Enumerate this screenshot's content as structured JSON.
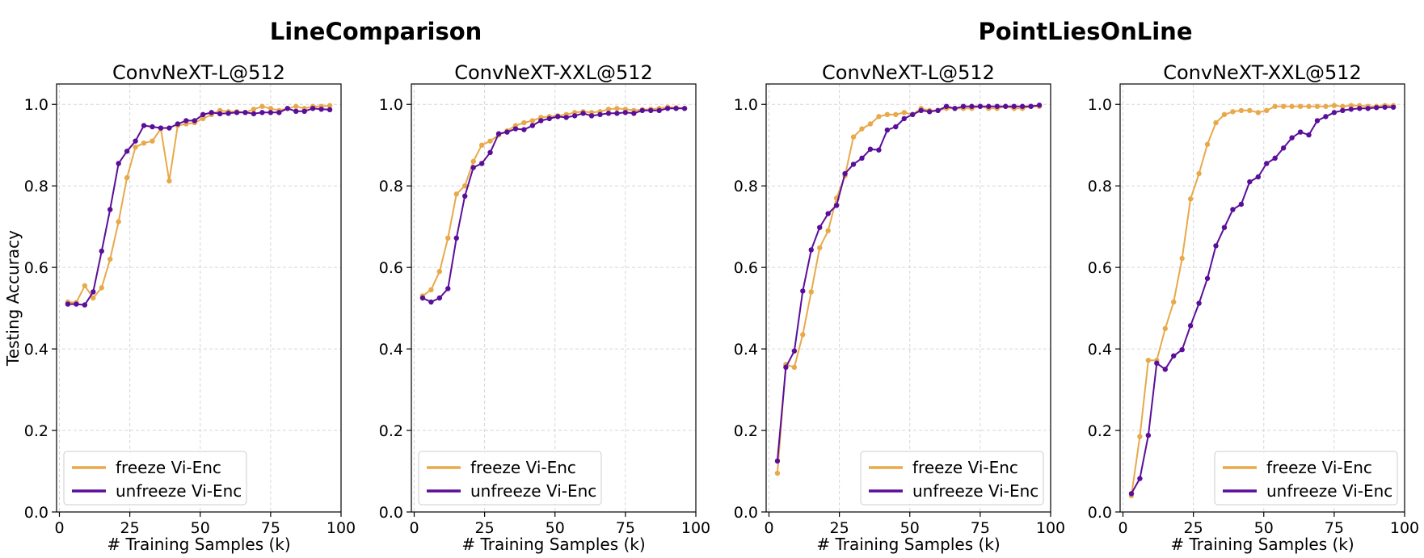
{
  "group_titles": [
    "LineComparison",
    "PointLiesOnLine"
  ],
  "colors": {
    "freeze": "#E8A94A",
    "unfreeze": "#5A0E99",
    "grid": "#d6d6d6"
  },
  "chart_data": [
    {
      "type": "line",
      "group": "LineComparison",
      "title": "ConvNeXT-L@512",
      "xlabel": "# Training Samples (k)",
      "ylabel": "Testing Accuracy",
      "xlim": [
        -1,
        100
      ],
      "ylim": [
        0,
        1.05
      ],
      "xticks": [
        0,
        25,
        50,
        75,
        100
      ],
      "yticks": [
        0.0,
        0.2,
        0.4,
        0.6,
        0.8,
        1.0
      ],
      "grid": true,
      "legend": "lower left",
      "series": [
        {
          "name": "freeze Vi-Enc",
          "x": [
            3,
            6,
            9,
            12,
            15,
            18,
            21,
            24,
            27,
            30,
            33,
            36,
            39,
            42,
            45,
            48,
            51,
            54,
            57,
            60,
            63,
            66,
            69,
            72,
            75,
            78,
            81,
            84,
            87,
            90,
            93,
            96
          ],
          "y": [
            0.515,
            0.514,
            0.555,
            0.525,
            0.55,
            0.62,
            0.712,
            0.82,
            0.895,
            0.905,
            0.91,
            0.94,
            0.812,
            0.948,
            0.952,
            0.955,
            0.965,
            0.975,
            0.985,
            0.982,
            0.982,
            0.98,
            0.988,
            0.995,
            0.99,
            0.985,
            0.99,
            0.995,
            0.99,
            0.995,
            0.995,
            0.997
          ]
        },
        {
          "name": "unfreeze Vi-Enc",
          "x": [
            3,
            6,
            9,
            12,
            15,
            18,
            21,
            24,
            27,
            30,
            33,
            36,
            39,
            42,
            45,
            48,
            51,
            54,
            57,
            60,
            63,
            66,
            69,
            72,
            75,
            78,
            81,
            84,
            87,
            90,
            93,
            96
          ],
          "y": [
            0.51,
            0.51,
            0.508,
            0.54,
            0.64,
            0.742,
            0.855,
            0.885,
            0.91,
            0.948,
            0.945,
            0.942,
            0.942,
            0.952,
            0.96,
            0.96,
            0.975,
            0.98,
            0.977,
            0.978,
            0.98,
            0.98,
            0.977,
            0.98,
            0.98,
            0.98,
            0.99,
            0.983,
            0.983,
            0.99,
            0.988,
            0.987
          ]
        }
      ]
    },
    {
      "type": "line",
      "group": "LineComparison",
      "title": "ConvNeXT-XXL@512",
      "xlabel": "# Training Samples (k)",
      "ylabel": "",
      "xlim": [
        -1,
        100
      ],
      "ylim": [
        0,
        1.05
      ],
      "xticks": [
        0,
        25,
        50,
        75,
        100
      ],
      "yticks": [
        0.0,
        0.2,
        0.4,
        0.6,
        0.8,
        1.0
      ],
      "grid": true,
      "legend": "lower left",
      "series": [
        {
          "name": "freeze Vi-Enc",
          "x": [
            3,
            6,
            9,
            12,
            15,
            18,
            21,
            24,
            27,
            30,
            33,
            36,
            39,
            42,
            45,
            48,
            51,
            54,
            57,
            60,
            63,
            66,
            69,
            72,
            75,
            78,
            81,
            84,
            87,
            90,
            93,
            96
          ],
          "y": [
            0.53,
            0.545,
            0.59,
            0.672,
            0.78,
            0.8,
            0.86,
            0.9,
            0.91,
            0.925,
            0.935,
            0.948,
            0.955,
            0.96,
            0.968,
            0.97,
            0.972,
            0.975,
            0.98,
            0.982,
            0.98,
            0.982,
            0.988,
            0.99,
            0.988,
            0.985,
            0.987,
            0.988,
            0.99,
            0.993,
            0.992,
            0.99
          ]
        },
        {
          "name": "unfreeze Vi-Enc",
          "x": [
            3,
            6,
            9,
            12,
            15,
            18,
            21,
            24,
            27,
            30,
            33,
            36,
            39,
            42,
            45,
            48,
            51,
            54,
            57,
            60,
            63,
            66,
            69,
            72,
            75,
            78,
            81,
            84,
            87,
            90,
            93,
            96
          ],
          "y": [
            0.525,
            0.515,
            0.525,
            0.548,
            0.672,
            0.775,
            0.845,
            0.855,
            0.882,
            0.928,
            0.932,
            0.94,
            0.938,
            0.948,
            0.96,
            0.965,
            0.97,
            0.968,
            0.972,
            0.978,
            0.972,
            0.975,
            0.978,
            0.978,
            0.98,
            0.978,
            0.985,
            0.985,
            0.985,
            0.99,
            0.99,
            0.99
          ]
        }
      ]
    },
    {
      "type": "line",
      "group": "PointLiesOnLine",
      "title": "ConvNeXT-L@512",
      "xlabel": "# Training Samples (k)",
      "ylabel": "",
      "xlim": [
        -1,
        100
      ],
      "ylim": [
        0,
        1.05
      ],
      "xticks": [
        0,
        25,
        50,
        75,
        100
      ],
      "yticks": [
        0.0,
        0.2,
        0.4,
        0.6,
        0.8,
        1.0
      ],
      "grid": true,
      "legend": "lower right",
      "series": [
        {
          "name": "freeze Vi-Enc",
          "x": [
            3,
            6,
            9,
            12,
            15,
            18,
            21,
            24,
            27,
            30,
            33,
            36,
            39,
            42,
            45,
            48,
            51,
            54,
            57,
            60,
            63,
            66,
            69,
            72,
            75,
            78,
            81,
            84,
            87,
            90,
            93,
            96
          ],
          "y": [
            0.095,
            0.362,
            0.355,
            0.435,
            0.54,
            0.648,
            0.69,
            0.77,
            0.825,
            0.92,
            0.94,
            0.952,
            0.97,
            0.975,
            0.975,
            0.98,
            0.975,
            0.99,
            0.985,
            0.985,
            0.99,
            0.99,
            0.99,
            0.99,
            0.995,
            0.99,
            0.99,
            0.995,
            0.99,
            0.99,
            0.995,
            0.995
          ]
        },
        {
          "name": "unfreeze Vi-Enc",
          "x": [
            3,
            6,
            9,
            12,
            15,
            18,
            21,
            24,
            27,
            30,
            33,
            36,
            39,
            42,
            45,
            48,
            51,
            54,
            57,
            60,
            63,
            66,
            69,
            72,
            75,
            78,
            81,
            84,
            87,
            90,
            93,
            96
          ],
          "y": [
            0.125,
            0.355,
            0.395,
            0.542,
            0.643,
            0.698,
            0.732,
            0.752,
            0.83,
            0.853,
            0.868,
            0.89,
            0.888,
            0.937,
            0.945,
            0.965,
            0.975,
            0.985,
            0.982,
            0.985,
            0.995,
            0.99,
            0.995,
            0.995,
            0.995,
            0.995,
            0.995,
            0.995,
            0.995,
            0.995,
            0.995,
            0.998
          ]
        }
      ]
    },
    {
      "type": "line",
      "group": "PointLiesOnLine",
      "title": "ConvNeXT-XXL@512",
      "xlabel": "# Training Samples (k)",
      "ylabel": "",
      "xlim": [
        -1,
        100
      ],
      "ylim": [
        0,
        1.05
      ],
      "xticks": [
        0,
        25,
        50,
        75,
        100
      ],
      "yticks": [
        0.0,
        0.2,
        0.4,
        0.6,
        0.8,
        1.0
      ],
      "grid": true,
      "legend": "lower right",
      "series": [
        {
          "name": "freeze Vi-Enc",
          "x": [
            3,
            6,
            9,
            12,
            15,
            18,
            21,
            24,
            27,
            30,
            33,
            36,
            39,
            42,
            45,
            48,
            51,
            54,
            57,
            60,
            63,
            66,
            69,
            72,
            75,
            78,
            81,
            84,
            87,
            90,
            93,
            96
          ],
          "y": [
            0.04,
            0.185,
            0.372,
            0.372,
            0.45,
            0.515,
            0.622,
            0.768,
            0.83,
            0.902,
            0.955,
            0.975,
            0.982,
            0.985,
            0.985,
            0.98,
            0.985,
            0.995,
            0.995,
            0.995,
            0.995,
            0.995,
            0.995,
            0.995,
            0.997,
            0.995,
            0.997,
            0.997,
            0.995,
            0.995,
            0.997,
            0.997
          ]
        },
        {
          "name": "unfreeze Vi-Enc",
          "x": [
            3,
            6,
            9,
            12,
            15,
            18,
            21,
            24,
            27,
            30,
            33,
            36,
            39,
            42,
            45,
            48,
            51,
            54,
            57,
            60,
            63,
            66,
            69,
            72,
            75,
            78,
            81,
            84,
            87,
            90,
            93,
            96
          ],
          "y": [
            0.045,
            0.082,
            0.188,
            0.365,
            0.35,
            0.383,
            0.398,
            0.457,
            0.512,
            0.573,
            0.653,
            0.698,
            0.742,
            0.755,
            0.81,
            0.822,
            0.855,
            0.868,
            0.893,
            0.918,
            0.932,
            0.925,
            0.96,
            0.97,
            0.98,
            0.985,
            0.988,
            0.99,
            0.99,
            0.992,
            0.993,
            0.993
          ]
        }
      ]
    }
  ]
}
